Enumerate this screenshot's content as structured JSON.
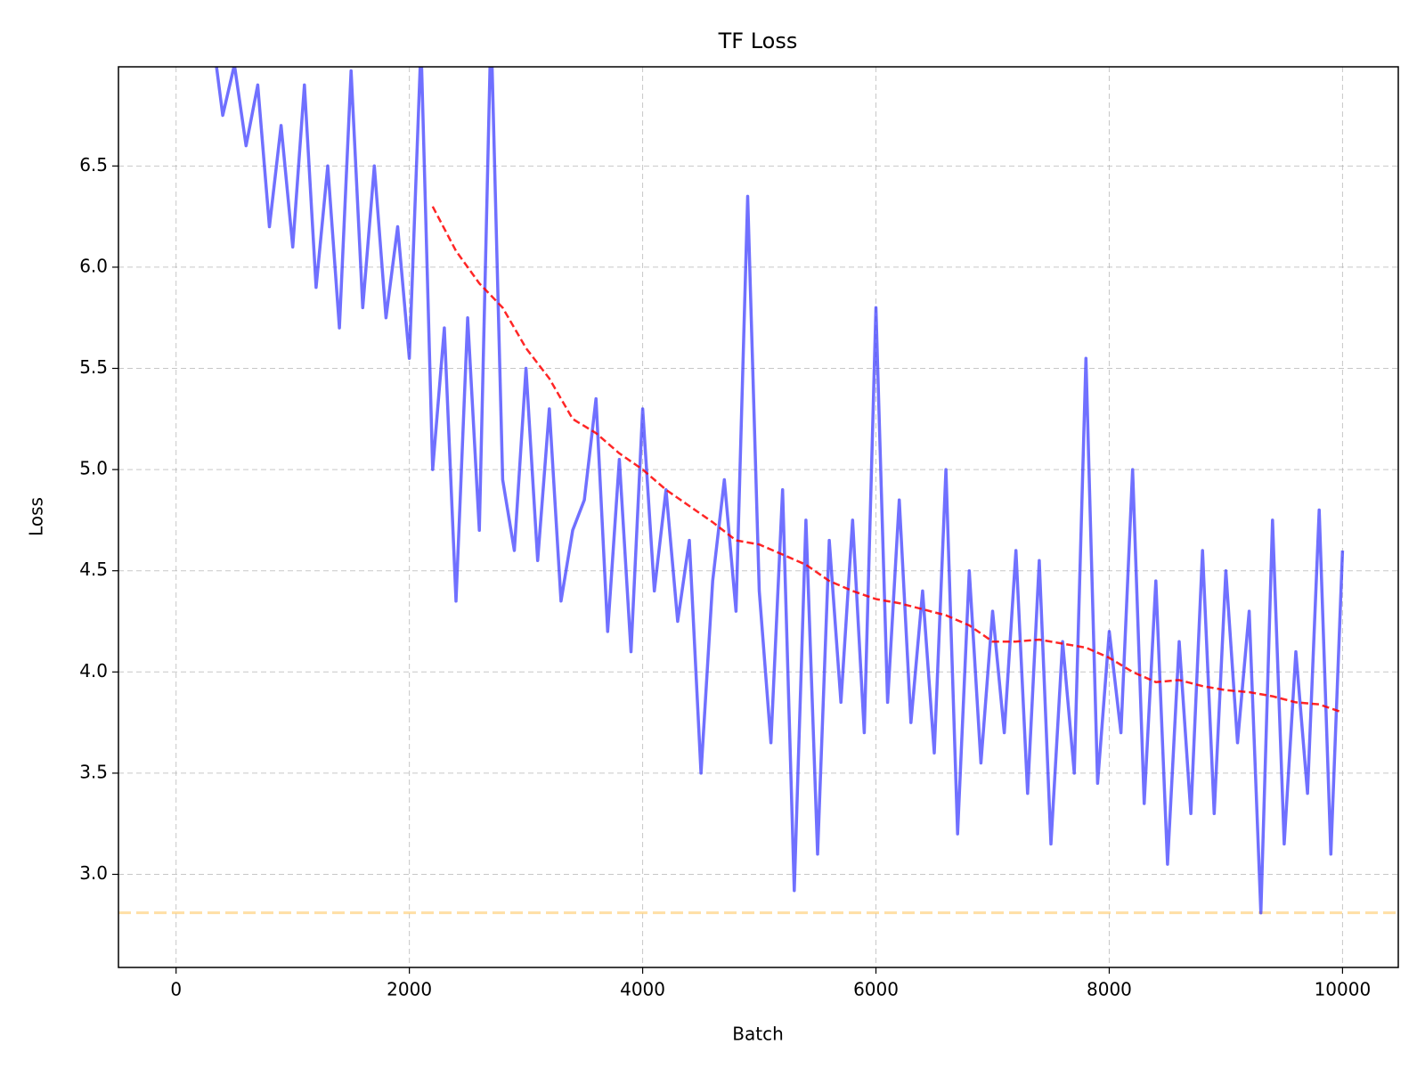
{
  "chart_data": {
    "type": "line",
    "title": "TF Loss",
    "x_label": "Batch",
    "y_label": "Loss",
    "xlim": [
      -494,
      10478
    ],
    "ylim": [
      2.54,
      6.99
    ],
    "xticks": [
      0,
      2000,
      4000,
      6000,
      8000,
      10000
    ],
    "yticks": [
      {
        "value": 3.0,
        "label": "3.0"
      },
      {
        "value": 3.5,
        "label": "3.5"
      },
      {
        "value": 4.0,
        "label": "4.0"
      },
      {
        "value": 4.5,
        "label": "4.5"
      },
      {
        "value": 5.0,
        "label": "5.0"
      },
      {
        "value": 5.5,
        "label": "5.5"
      },
      {
        "value": 6.0,
        "label": "6.0"
      },
      {
        "value": 6.5,
        "label": "6.5"
      }
    ],
    "grid": true,
    "series": [
      {
        "color": "#3333ff",
        "style": "solid",
        "x": [
          300,
          400,
          500,
          600,
          700,
          800,
          900,
          1000,
          1100,
          1200,
          1300,
          1400,
          1500,
          1600,
          1700,
          1800,
          1900,
          2000,
          2100,
          2200,
          2300,
          2400,
          2500,
          2600,
          2700,
          2800,
          2900,
          3000,
          3100,
          3200,
          3300,
          3400,
          3500,
          3600,
          3700,
          3800,
          3900,
          4000,
          4100,
          4200,
          4300,
          4400,
          4500,
          4600,
          4700,
          4800,
          4900,
          5000,
          5100,
          5200,
          5300,
          5400,
          5500,
          5600,
          5700,
          5800,
          5900,
          6000,
          6100,
          6200,
          6300,
          6400,
          6500,
          6600,
          6700,
          6800,
          6900,
          7000,
          7100,
          7200,
          7300,
          7400,
          7500,
          7600,
          7700,
          7800,
          7900,
          8000,
          8100,
          8200,
          8300,
          8400,
          8500,
          8600,
          8700,
          8800,
          8900,
          9000,
          9100,
          9200,
          9300,
          9400,
          9500,
          9600,
          9700,
          9800,
          9900,
          10000
        ],
        "values": [
          7.2,
          6.75,
          7.0,
          6.6,
          6.9,
          6.2,
          6.7,
          6.1,
          6.9,
          5.9,
          6.5,
          5.7,
          6.97,
          5.8,
          6.5,
          5.75,
          6.2,
          5.55,
          7.1,
          5.0,
          5.7,
          4.35,
          5.75,
          4.7,
          7.2,
          4.95,
          4.6,
          5.5,
          4.55,
          5.3,
          4.35,
          4.7,
          4.85,
          5.35,
          4.2,
          5.05,
          4.1,
          5.3,
          4.4,
          4.9,
          4.25,
          4.65,
          3.5,
          4.45,
          4.95,
          4.3,
          6.35,
          4.4,
          3.65,
          4.9,
          2.92,
          4.75,
          3.1,
          4.65,
          3.85,
          4.75,
          3.7,
          5.8,
          3.85,
          4.85,
          3.75,
          4.4,
          3.6,
          5.0,
          3.2,
          4.5,
          3.55,
          4.3,
          3.7,
          4.6,
          3.4,
          4.55,
          3.15,
          4.15,
          3.5,
          5.55,
          3.45,
          4.2,
          3.7,
          5.0,
          3.35,
          4.45,
          3.05,
          4.15,
          3.3,
          4.6,
          3.3,
          4.5,
          3.65,
          4.3,
          2.81,
          4.75,
          3.15,
          4.1,
          3.4,
          4.8,
          3.1,
          4.6
        ]
      },
      {
        "color": "#ff0000",
        "style": "dashed",
        "x": [
          2200,
          2400,
          2600,
          2800,
          3000,
          3200,
          3400,
          3600,
          3800,
          4000,
          4200,
          4400,
          4600,
          4800,
          5000,
          5200,
          5400,
          5600,
          5800,
          6000,
          6200,
          6400,
          6600,
          6800,
          7000,
          7200,
          7400,
          7600,
          7800,
          8000,
          8200,
          8400,
          8600,
          8800,
          9000,
          9200,
          9400,
          9600,
          9800,
          10000
        ],
        "values": [
          6.3,
          6.08,
          5.92,
          5.8,
          5.6,
          5.45,
          5.25,
          5.18,
          5.08,
          5.0,
          4.9,
          4.82,
          4.74,
          4.65,
          4.63,
          4.58,
          4.53,
          4.45,
          4.4,
          4.36,
          4.34,
          4.31,
          4.28,
          4.23,
          4.15,
          4.15,
          4.16,
          4.14,
          4.12,
          4.07,
          4.0,
          3.95,
          3.96,
          3.93,
          3.91,
          3.9,
          3.88,
          3.85,
          3.84,
          3.8
        ]
      }
    ],
    "hlines": [
      {
        "value": 2.81,
        "color": "#ffd27f"
      }
    ]
  }
}
